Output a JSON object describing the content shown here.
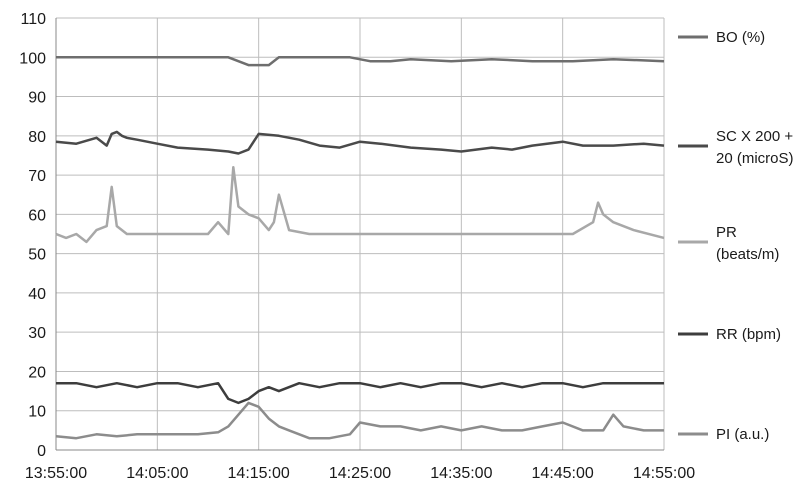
{
  "chart_data": {
    "type": "line",
    "title": "",
    "xlabel": "",
    "ylabel": "",
    "ylim": [
      0,
      110
    ],
    "yticks": [
      "0",
      "10",
      "20",
      "30",
      "40",
      "50",
      "60",
      "70",
      "80",
      "90",
      "100",
      "110"
    ],
    "x_range": [
      "13:55:00",
      "14:55:00"
    ],
    "xticks": [
      "13:55:00",
      "14:05:00",
      "14:15:00",
      "14:25:00",
      "14:35:00",
      "14:45:00",
      "14:55:00"
    ],
    "grid": true,
    "legend_position": "right",
    "series": [
      {
        "name": "BO (%)",
        "label_lines": [
          "BO (%)"
        ],
        "color": "#6e6e6e",
        "x": [
          "13:55:00",
          "13:59:00",
          "14:04:00",
          "14:09:00",
          "14:12:00",
          "14:13:00",
          "14:14:00",
          "14:15:00",
          "14:16:00",
          "14:17:00",
          "14:20:00",
          "14:24:00",
          "14:26:00",
          "14:28:00",
          "14:30:00",
          "14:34:00",
          "14:38:00",
          "14:42:00",
          "14:46:00",
          "14:50:00",
          "14:55:00"
        ],
        "values": [
          100,
          100,
          100,
          100,
          100,
          99,
          98,
          98,
          98,
          100,
          100,
          100,
          99,
          99,
          99.5,
          99,
          99.5,
          99,
          99,
          99.5,
          99
        ]
      },
      {
        "name": "SC X 200 + 20 (microS)",
        "label_lines": [
          "SC X 200 +",
          "20 (microS)"
        ],
        "color": "#4a4a4a",
        "x": [
          "13:55:00",
          "13:57:00",
          "13:59:00",
          "14:00:00",
          "14:00:30",
          "14:01:00",
          "14:01:30",
          "14:02:00",
          "14:03:00",
          "14:05:00",
          "14:07:00",
          "14:10:00",
          "14:12:00",
          "14:13:00",
          "14:14:00",
          "14:15:00",
          "14:17:00",
          "14:19:00",
          "14:21:00",
          "14:23:00",
          "14:25:00",
          "14:27:00",
          "14:30:00",
          "14:33:00",
          "14:35:00",
          "14:38:00",
          "14:40:00",
          "14:42:00",
          "14:45:00",
          "14:47:00",
          "14:50:00",
          "14:53:00",
          "14:55:00"
        ],
        "values": [
          78.5,
          78,
          79.5,
          77.5,
          80.5,
          81,
          80,
          79.5,
          79,
          78,
          77,
          76.5,
          76,
          75.5,
          76.5,
          80.5,
          80,
          79,
          77.5,
          77,
          78.5,
          78,
          77,
          76.5,
          76,
          77,
          76.5,
          77.5,
          78.5,
          77.5,
          77.5,
          78,
          77.5
        ]
      },
      {
        "name": "PR (beats/m)",
        "label_lines": [
          "PR",
          "(beats/m)"
        ],
        "color": "#a8a8a8",
        "x": [
          "13:55:00",
          "13:56:00",
          "13:57:00",
          "13:58:00",
          "13:59:00",
          "14:00:00",
          "14:00:30",
          "14:01:00",
          "14:02:00",
          "14:04:00",
          "14:06:00",
          "14:08:00",
          "14:10:00",
          "14:11:00",
          "14:12:00",
          "14:12:30",
          "14:13:00",
          "14:14:00",
          "14:15:00",
          "14:16:00",
          "14:16:30",
          "14:17:00",
          "14:18:00",
          "14:20:00",
          "14:23:00",
          "14:26:00",
          "14:30:00",
          "14:34:00",
          "14:38:00",
          "14:41:00",
          "14:44:00",
          "14:46:00",
          "14:48:00",
          "14:48:30",
          "14:49:00",
          "14:50:00",
          "14:52:00",
          "14:55:00"
        ],
        "values": [
          55,
          54,
          55,
          53,
          56,
          57,
          67,
          57,
          55,
          55,
          55,
          55,
          55,
          58,
          55,
          72,
          62,
          60,
          59,
          56,
          58,
          65,
          56,
          55,
          55,
          55,
          55,
          55,
          55,
          55,
          55,
          55,
          58,
          63,
          60,
          58,
          56,
          54
        ]
      },
      {
        "name": "RR (bpm)",
        "label_lines": [
          "RR (bpm)"
        ],
        "color": "#3d3d3d",
        "x": [
          "13:55:00",
          "13:57:00",
          "13:59:00",
          "14:01:00",
          "14:03:00",
          "14:05:00",
          "14:07:00",
          "14:09:00",
          "14:11:00",
          "14:12:00",
          "14:13:00",
          "14:14:00",
          "14:15:00",
          "14:16:00",
          "14:17:00",
          "14:19:00",
          "14:21:00",
          "14:23:00",
          "14:25:00",
          "14:27:00",
          "14:29:00",
          "14:31:00",
          "14:33:00",
          "14:35:00",
          "14:37:00",
          "14:39:00",
          "14:41:00",
          "14:43:00",
          "14:45:00",
          "14:47:00",
          "14:49:00",
          "14:51:00",
          "14:53:00",
          "14:55:00"
        ],
        "values": [
          17,
          17,
          16,
          17,
          16,
          17,
          17,
          16,
          17,
          13,
          12,
          13,
          15,
          16,
          15,
          17,
          16,
          17,
          17,
          16,
          17,
          16,
          17,
          17,
          16,
          17,
          16,
          17,
          17,
          16,
          17,
          17,
          17,
          17
        ]
      },
      {
        "name": "PI (a.u.)",
        "label_lines": [
          "PI (a.u.)"
        ],
        "color": "#8c8c8c",
        "x": [
          "13:55:00",
          "13:57:00",
          "13:59:00",
          "14:01:00",
          "14:03:00",
          "14:05:00",
          "14:07:00",
          "14:09:00",
          "14:11:00",
          "14:12:00",
          "14:13:00",
          "14:14:00",
          "14:15:00",
          "14:16:00",
          "14:17:00",
          "14:18:00",
          "14:20:00",
          "14:22:00",
          "14:24:00",
          "14:25:00",
          "14:27:00",
          "14:29:00",
          "14:31:00",
          "14:33:00",
          "14:35:00",
          "14:37:00",
          "14:39:00",
          "14:41:00",
          "14:43:00",
          "14:45:00",
          "14:47:00",
          "14:49:00",
          "14:50:00",
          "14:51:00",
          "14:53:00",
          "14:55:00"
        ],
        "values": [
          3.5,
          3,
          4,
          3.5,
          4,
          4,
          4,
          4,
          4.5,
          6,
          9,
          12,
          11,
          8,
          6,
          5,
          3,
          3,
          4,
          7,
          6,
          6,
          5,
          6,
          5,
          6,
          5,
          5,
          6,
          7,
          5,
          5,
          9,
          6,
          5,
          5
        ]
      }
    ]
  }
}
